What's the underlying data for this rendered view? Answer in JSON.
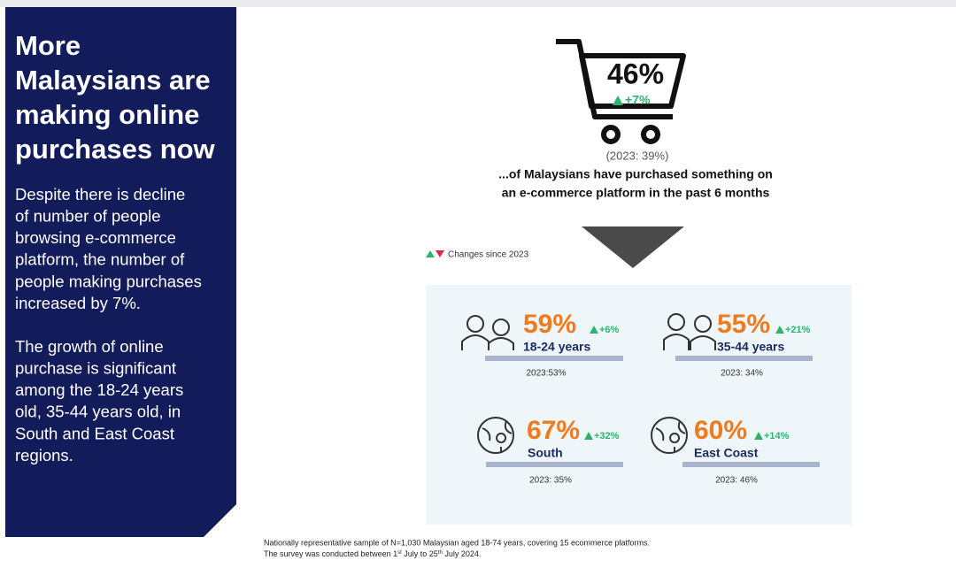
{
  "panel": {
    "title_lines": [
      "More",
      "Malaysians are",
      "making online",
      "purchases now"
    ],
    "body_paragraphs": [
      [
        "Despite there is decline",
        "of number of people",
        "browsing e-commerce",
        "platform, the number of",
        "people making purchases",
        "increased by 7%."
      ],
      [
        "The growth of online",
        "purchase is significant",
        "among the 18-24 years",
        "old, 35-44 years old, in",
        "South and East Coast",
        "regions."
      ]
    ]
  },
  "headline": {
    "value": "46%",
    "change": "+7%",
    "previous": "(2023: 39%)",
    "caption_lines": [
      "...of Malaysians have purchased something on",
      "an e-commerce platform in the past 6 months"
    ]
  },
  "legend": {
    "label": "Changes since 2023"
  },
  "segments": [
    {
      "value": "59%",
      "change": "+6%",
      "label": "18-24 years",
      "previous": "2023:53%"
    },
    {
      "value": "55%",
      "change": "+21%",
      "label": "35-44 years",
      "previous": "2023: 34%"
    },
    {
      "value": "67%",
      "change": "+32%",
      "label": "South",
      "previous": "2023: 35%"
    },
    {
      "value": "60%",
      "change": "+14%",
      "label": "East Coast",
      "previous": "2023: 46%"
    }
  ],
  "footnote": {
    "line1": "Nationally representative sample of N=1,030 Malaysian aged 18-74 years, covering 15 ecommerce platforms.",
    "line2": [
      "The survey was conducted between 1",
      "st",
      " July to 25",
      "th",
      " July 2024."
    ]
  }
}
